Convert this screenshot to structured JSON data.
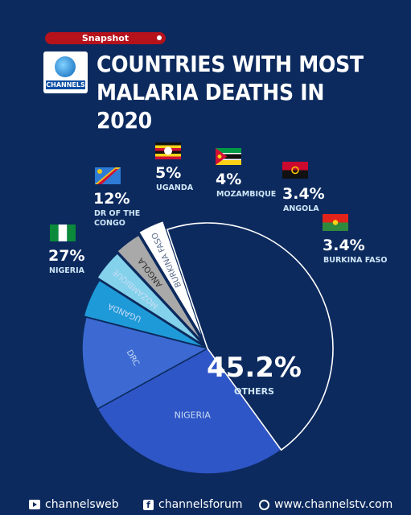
{
  "badge": "Snapshot",
  "logo_text": "CHANNELS",
  "title_lines": [
    "COUNTRIES WITH MOST",
    "MALARIA DEATHS IN 2020"
  ],
  "colors": {
    "background": "#0c2a5e",
    "accent": "#b5121b",
    "label_text": "#cfe6f7"
  },
  "chart_data": {
    "type": "pie",
    "title": "COUNTRIES WITH MOST MALARIA DEATHS IN 2020",
    "slices": [
      {
        "name": "NIGERIA",
        "value": 27,
        "pct_label": "27%",
        "display_name": "NIGERIA",
        "color": "#2f56c6",
        "flag": "nigeria"
      },
      {
        "name": "DRC",
        "value": 12,
        "pct_label": "12%",
        "display_name": "DR OF THE CONGO",
        "color": "#3c6ad2",
        "flag": "drc"
      },
      {
        "name": "UGANDA",
        "value": 5,
        "pct_label": "5%",
        "display_name": "UGANDA",
        "color": "#1f9ad8",
        "flag": "uganda"
      },
      {
        "name": "MOZAMBIQUE",
        "value": 4,
        "pct_label": "4%",
        "display_name": "MOZAMBIQUE",
        "color": "#83d1ea",
        "flag": "mozambique"
      },
      {
        "name": "ANGOLA",
        "value": 3.4,
        "pct_label": "3.4%",
        "display_name": "ANGOLA",
        "color": "#a9a9a9",
        "flag": "angola"
      },
      {
        "name": "BURKINA FASO",
        "value": 3.4,
        "pct_label": "3.4%",
        "display_name": "BURKINA FASO",
        "color": "#ffffff",
        "flag": "burkina"
      },
      {
        "name": "OTHERS",
        "value": 45.2,
        "pct_label": "45.2%",
        "display_name": "OTHERS",
        "color": "#0c2a5e",
        "flag": ""
      }
    ]
  },
  "footer": {
    "youtube": "channelsweb",
    "facebook": "channelsforum",
    "website": "www.channelstv.com"
  }
}
